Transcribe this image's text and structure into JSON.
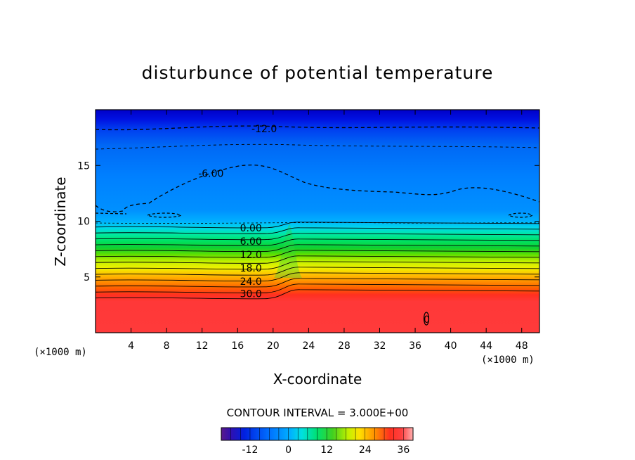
{
  "chart_data": {
    "type": "heatmap",
    "title": "disturbunce of potential temperature",
    "xlabel": "X-coordinate",
    "ylabel": "Z-coordinate",
    "x_unit": "(×1000 m)",
    "x_ticks": [
      4,
      8,
      12,
      16,
      20,
      24,
      28,
      32,
      36,
      40,
      44,
      48
    ],
    "y_ticks": [
      5,
      10,
      15
    ],
    "xlim": [
      0,
      50
    ],
    "ylim": [
      0,
      20
    ],
    "contour_interval_label": "CONTOUR INTERVAL = 3.000E+00",
    "contour_labels": [
      {
        "text": "-12.0",
        "x": 19,
        "z": 18.3
      },
      {
        "text": "-6.00",
        "x": 13,
        "z": 14.3
      },
      {
        "text": "0.00",
        "x": 17.5,
        "z": 9.4
      },
      {
        "text": "6.00",
        "x": 17.5,
        "z": 8.2
      },
      {
        "text": "12.0",
        "x": 17.5,
        "z": 7.0
      },
      {
        "text": "18.0",
        "x": 17.5,
        "z": 5.8
      },
      {
        "text": "24.0",
        "x": 17.5,
        "z": 4.6
      },
      {
        "text": "30.0",
        "x": 17.5,
        "z": 3.5
      },
      {
        "text": "0",
        "x": 37.3,
        "z": 1.2
      }
    ],
    "colorbar": {
      "range": [
        -21,
        39
      ],
      "ticks": [
        -12,
        0,
        12,
        24,
        36
      ],
      "tick_labels": [
        "-12",
        "0",
        "12",
        "24",
        "36"
      ]
    },
    "color_scale": "rainbow (purple-blue-cyan-green-yellow-red)"
  }
}
